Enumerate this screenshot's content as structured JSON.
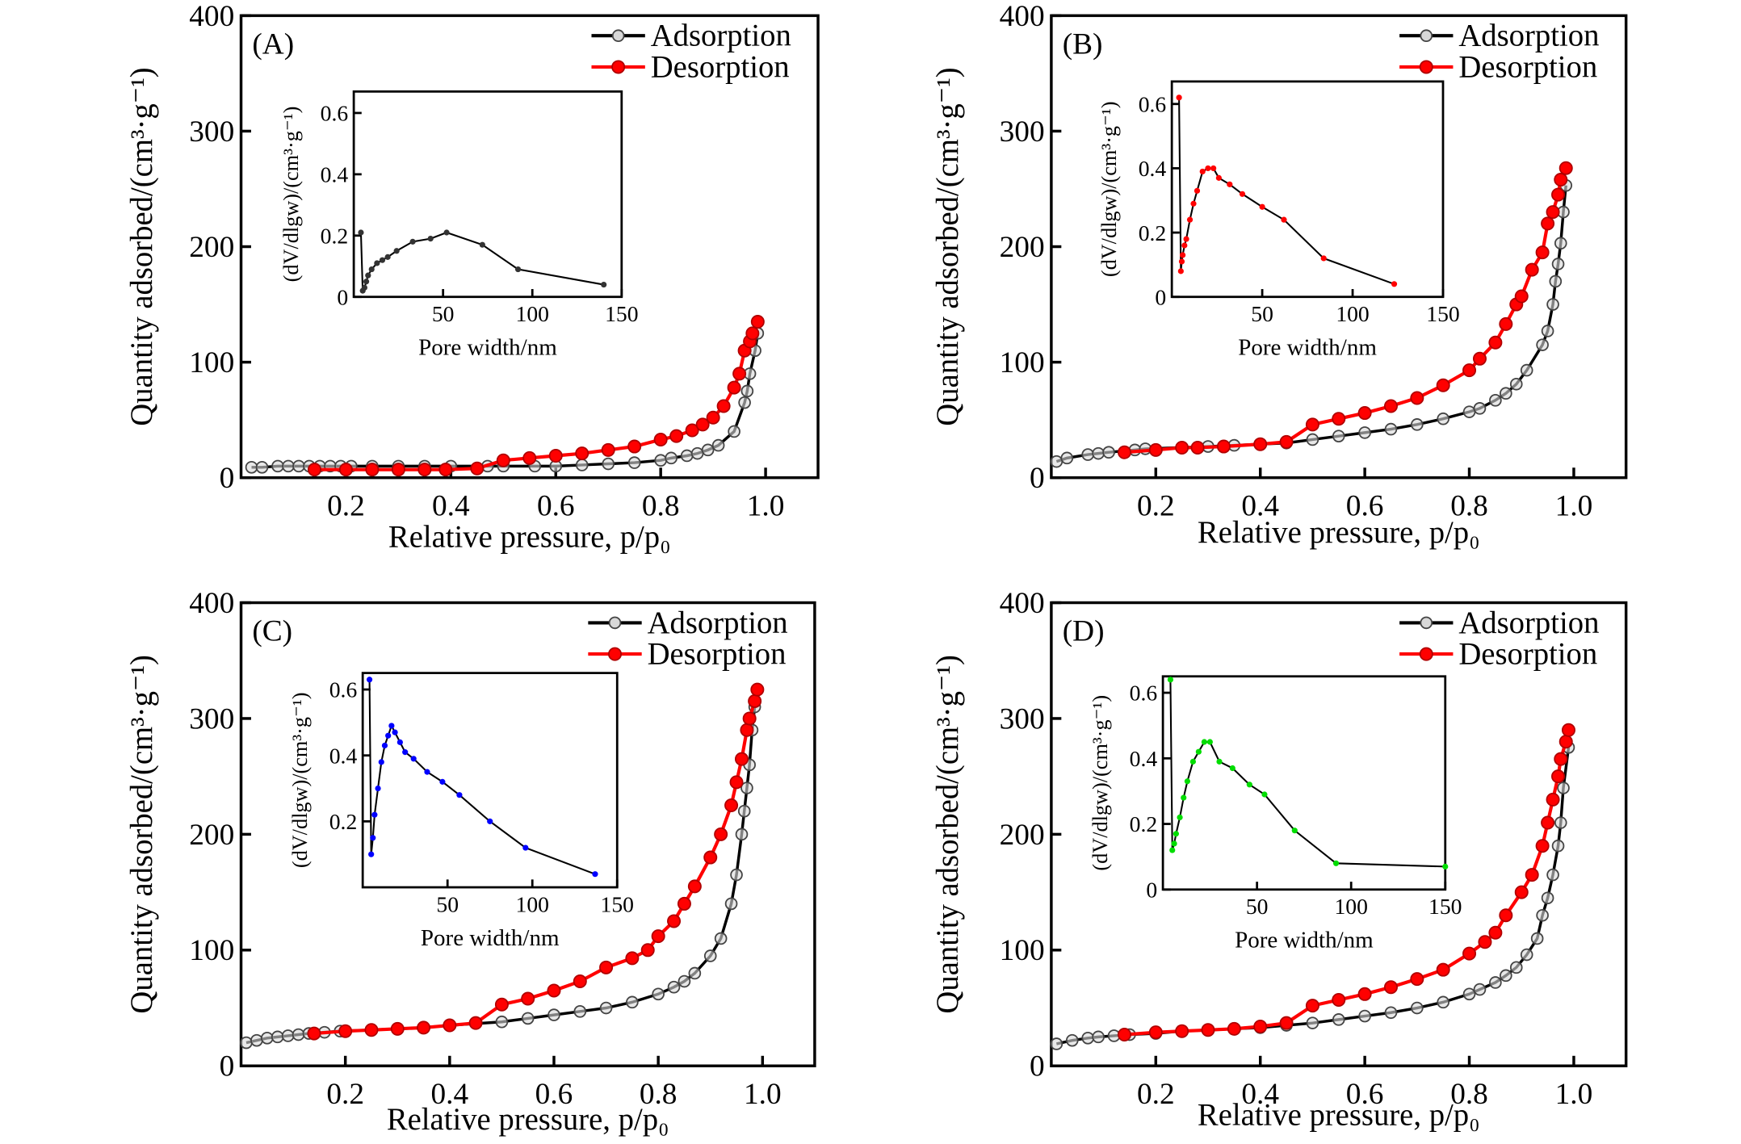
{
  "chart_data": [
    {
      "panel": "(A)",
      "type": "line",
      "xlabel": "Relative pressure, p/p₀",
      "ylabel": "Quantity adsorbed/(cm³·g⁻¹)",
      "xlim": [
        0,
        1.1
      ],
      "ylim": [
        0,
        400
      ],
      "xticks": [
        0.2,
        0.4,
        0.6,
        0.8,
        1.0
      ],
      "yticks": [
        0,
        100,
        200,
        300,
        400
      ],
      "legend": "top-right",
      "series": [
        {
          "name": "Adsorption",
          "color": "#000000",
          "x": [
            0.02,
            0.04,
            0.07,
            0.09,
            0.11,
            0.13,
            0.15,
            0.17,
            0.19,
            0.21,
            0.25,
            0.3,
            0.35,
            0.4,
            0.47,
            0.5,
            0.56,
            0.6,
            0.65,
            0.7,
            0.75,
            0.8,
            0.82,
            0.85,
            0.87,
            0.89,
            0.91,
            0.94,
            0.96,
            0.965,
            0.97,
            0.98,
            0.985
          ],
          "y": [
            9,
            9,
            10,
            10,
            10,
            10,
            10,
            10,
            10,
            10,
            10,
            10,
            10,
            10,
            10,
            10,
            10,
            10,
            11,
            12,
            13,
            15,
            17,
            19,
            21,
            24,
            28,
            40,
            65,
            75,
            90,
            110,
            125
          ]
        },
        {
          "name": "Desorption",
          "color": "#ff0000",
          "x": [
            0.14,
            0.2,
            0.25,
            0.3,
            0.35,
            0.39,
            0.45,
            0.5,
            0.55,
            0.6,
            0.65,
            0.7,
            0.75,
            0.8,
            0.83,
            0.86,
            0.88,
            0.9,
            0.92,
            0.94,
            0.95,
            0.96,
            0.97,
            0.975,
            0.985
          ],
          "y": [
            7,
            7,
            7,
            7,
            7,
            7,
            8,
            15,
            17,
            19,
            21,
            24,
            27,
            33,
            36,
            41,
            46,
            52,
            62,
            78,
            90,
            110,
            118,
            125,
            135
          ]
        }
      ],
      "inset": {
        "xlabel": "Pore width/nm",
        "ylabel": "(dV/dlgw)/(cm³·g⁻¹)",
        "xlim": [
          0,
          150
        ],
        "ylim": [
          0,
          0.67
        ],
        "xticks": [
          50,
          100,
          150
        ],
        "yticks": [
          0,
          0.2,
          0.4,
          0.6
        ],
        "ytick_labels": [
          "0",
          "0.2",
          "0.4",
          "0.6"
        ],
        "color": "#333333",
        "x": [
          4,
          5,
          6,
          7,
          8,
          10,
          13,
          16,
          19,
          24,
          33,
          43,
          52,
          72,
          92,
          140
        ],
        "y": [
          0.21,
          0.02,
          0.03,
          0.05,
          0.07,
          0.09,
          0.11,
          0.12,
          0.13,
          0.15,
          0.18,
          0.19,
          0.21,
          0.17,
          0.09,
          0.04
        ]
      }
    },
    {
      "panel": "(B)",
      "type": "line",
      "xlabel": "Relative pressure, p/p₀",
      "ylabel": "Quantity adsorbed/(cm³·g⁻¹)",
      "xlim": [
        0,
        1.1
      ],
      "ylim": [
        0,
        400
      ],
      "xticks": [
        0.2,
        0.4,
        0.6,
        0.8,
        1.0
      ],
      "yticks": [
        0,
        100,
        200,
        300,
        400
      ],
      "legend": "top-right",
      "series": [
        {
          "name": "Adsorption",
          "color": "#000000",
          "x": [
            0.01,
            0.03,
            0.07,
            0.09,
            0.11,
            0.16,
            0.18,
            0.3,
            0.35,
            0.4,
            0.45,
            0.5,
            0.55,
            0.6,
            0.65,
            0.7,
            0.75,
            0.8,
            0.82,
            0.85,
            0.87,
            0.89,
            0.91,
            0.94,
            0.95,
            0.96,
            0.965,
            0.97,
            0.975,
            0.98,
            0.985
          ],
          "y": [
            14,
            17,
            20,
            21,
            22,
            24,
            25,
            27,
            28,
            29,
            30,
            33,
            36,
            39,
            42,
            46,
            51,
            57,
            60,
            67,
            73,
            81,
            93,
            115,
            127,
            150,
            170,
            185,
            203,
            230,
            253
          ]
        },
        {
          "name": "Desorption",
          "color": "#ff0000",
          "x": [
            0.14,
            0.2,
            0.25,
            0.28,
            0.33,
            0.4,
            0.45,
            0.5,
            0.55,
            0.6,
            0.65,
            0.7,
            0.75,
            0.8,
            0.82,
            0.85,
            0.87,
            0.89,
            0.9,
            0.92,
            0.94,
            0.95,
            0.96,
            0.97,
            0.975,
            0.985
          ],
          "y": [
            22,
            24,
            26,
            26,
            27,
            29,
            31,
            46,
            51,
            56,
            62,
            69,
            80,
            93,
            103,
            117,
            133,
            150,
            157,
            180,
            195,
            220,
            230,
            245,
            258,
            268
          ]
        }
      ],
      "inset": {
        "xlabel": "Pore width/nm",
        "ylabel": "(dV/dlgw)/(cm³·g⁻¹)",
        "xlim": [
          0,
          150
        ],
        "ylim": [
          0,
          0.67
        ],
        "xticks": [
          50,
          100,
          150
        ],
        "yticks": [
          0,
          0.2,
          0.4,
          0.6
        ],
        "ytick_labels": [
          "0",
          "0.2",
          "0.4",
          "0.6"
        ],
        "color": "#ff0000",
        "x": [
          4,
          5,
          5.5,
          6,
          7,
          8,
          10,
          12,
          14,
          17,
          20,
          23,
          26,
          32,
          39,
          50,
          62,
          84,
          123
        ],
        "y": [
          0.62,
          0.08,
          0.11,
          0.13,
          0.16,
          0.18,
          0.24,
          0.29,
          0.33,
          0.39,
          0.4,
          0.4,
          0.37,
          0.35,
          0.32,
          0.28,
          0.24,
          0.12,
          0.04
        ]
      }
    },
    {
      "panel": "(C)",
      "type": "line",
      "xlabel": "Relative pressure, p/p₀",
      "ylabel": "Quantity adsorbed/(cm³·g⁻¹)",
      "xlim": [
        0,
        1.1
      ],
      "ylim": [
        0,
        400
      ],
      "xticks": [
        0.2,
        0.4,
        0.6,
        0.8,
        1.0
      ],
      "yticks": [
        0,
        100,
        200,
        300,
        400
      ],
      "legend": "top-right",
      "series": [
        {
          "name": "Adsorption",
          "color": "#000000",
          "x": [
            0.01,
            0.03,
            0.05,
            0.07,
            0.09,
            0.11,
            0.13,
            0.16,
            0.19,
            0.25,
            0.3,
            0.35,
            0.4,
            0.5,
            0.55,
            0.6,
            0.65,
            0.7,
            0.75,
            0.8,
            0.83,
            0.85,
            0.87,
            0.9,
            0.92,
            0.94,
            0.95,
            0.96,
            0.965,
            0.97,
            0.975,
            0.98,
            0.985
          ],
          "y": [
            20,
            22,
            24,
            25,
            26,
            27,
            28,
            29,
            30,
            31,
            32,
            33,
            35,
            38,
            41,
            44,
            47,
            50,
            55,
            62,
            68,
            73,
            80,
            95,
            110,
            140,
            165,
            200,
            220,
            240,
            260,
            290,
            310
          ]
        },
        {
          "name": "Desorption",
          "color": "#ff0000",
          "x": [
            0.14,
            0.2,
            0.25,
            0.3,
            0.35,
            0.4,
            0.45,
            0.5,
            0.55,
            0.6,
            0.65,
            0.7,
            0.75,
            0.78,
            0.8,
            0.83,
            0.85,
            0.87,
            0.9,
            0.92,
            0.94,
            0.95,
            0.96,
            0.97,
            0.975,
            0.985,
            0.99
          ],
          "y": [
            28,
            30,
            31,
            32,
            33,
            35,
            37,
            53,
            58,
            65,
            73,
            85,
            93,
            100,
            112,
            125,
            140,
            155,
            180,
            200,
            225,
            245,
            265,
            290,
            300,
            315,
            325
          ]
        }
      ],
      "inset": {
        "xlabel": "Pore width/nm",
        "ylabel": "(dV/dlgw)/(cm³·g⁻¹)",
        "xlim": [
          0,
          150
        ],
        "ylim": [
          0,
          0.65
        ],
        "xticks": [
          50,
          100,
          150
        ],
        "yticks": [
          0.2,
          0.4,
          0.6
        ],
        "ytick_labels": [
          "0.2",
          "0.4",
          "0.6"
        ],
        "color": "#0000ff",
        "x": [
          4,
          5,
          6,
          7,
          9,
          11,
          13,
          15,
          17,
          19,
          22,
          25,
          30,
          38,
          47,
          57,
          75,
          96,
          137
        ],
        "y": [
          0.63,
          0.1,
          0.15,
          0.22,
          0.3,
          0.38,
          0.43,
          0.46,
          0.49,
          0.47,
          0.44,
          0.41,
          0.39,
          0.35,
          0.32,
          0.28,
          0.2,
          0.12,
          0.04
        ]
      }
    },
    {
      "panel": "(D)",
      "type": "line",
      "xlabel": "Relative pressure, p/p₀",
      "ylabel": "Quantity adsorbed/(cm³·g⁻¹)",
      "xlim": [
        0,
        1.1
      ],
      "ylim": [
        0,
        400
      ],
      "xticks": [
        0.2,
        0.4,
        0.6,
        0.8,
        1.0
      ],
      "yticks": [
        0,
        100,
        200,
        300,
        400
      ],
      "legend": "top-right",
      "series": [
        {
          "name": "Adsorption",
          "color": "#000000",
          "x": [
            0.01,
            0.04,
            0.07,
            0.09,
            0.12,
            0.15,
            0.2,
            0.25,
            0.3,
            0.35,
            0.4,
            0.45,
            0.5,
            0.55,
            0.6,
            0.65,
            0.7,
            0.75,
            0.8,
            0.82,
            0.85,
            0.87,
            0.89,
            0.91,
            0.93,
            0.94,
            0.95,
            0.96,
            0.97,
            0.975,
            0.98,
            0.99
          ],
          "y": [
            19,
            22,
            24,
            25,
            26,
            27,
            28,
            30,
            31,
            32,
            33,
            35,
            37,
            40,
            43,
            46,
            50,
            55,
            62,
            66,
            72,
            78,
            85,
            96,
            110,
            130,
            145,
            165,
            190,
            210,
            240,
            275
          ]
        },
        {
          "name": "Desorption",
          "color": "#ff0000",
          "x": [
            0.14,
            0.2,
            0.25,
            0.3,
            0.35,
            0.4,
            0.45,
            0.5,
            0.55,
            0.6,
            0.65,
            0.7,
            0.75,
            0.8,
            0.83,
            0.85,
            0.87,
            0.9,
            0.92,
            0.94,
            0.95,
            0.96,
            0.97,
            0.975,
            0.985,
            0.99
          ],
          "y": [
            27,
            29,
            30,
            31,
            32,
            34,
            37,
            52,
            57,
            62,
            68,
            75,
            83,
            97,
            107,
            115,
            130,
            150,
            165,
            190,
            210,
            230,
            250,
            265,
            280,
            290
          ]
        }
      ],
      "inset": {
        "xlabel": "Pore width/nm",
        "ylabel": "(dV/dlgw)/(cm³·g⁻¹)",
        "xlim": [
          0,
          150
        ],
        "ylim": [
          0,
          0.65
        ],
        "xticks": [
          50,
          100,
          150
        ],
        "yticks": [
          0,
          0.2,
          0.4,
          0.6
        ],
        "ytick_labels": [
          "0",
          "0.2",
          "0.4",
          "0.6"
        ],
        "color": "#00dd00",
        "x": [
          4,
          5,
          6,
          7,
          9,
          11,
          13,
          16,
          19,
          22,
          25,
          30,
          37,
          46,
          54,
          70,
          92,
          150
        ],
        "y": [
          0.64,
          0.12,
          0.14,
          0.17,
          0.22,
          0.28,
          0.33,
          0.39,
          0.42,
          0.45,
          0.45,
          0.39,
          0.37,
          0.32,
          0.29,
          0.18,
          0.08,
          0.07
        ]
      }
    }
  ]
}
